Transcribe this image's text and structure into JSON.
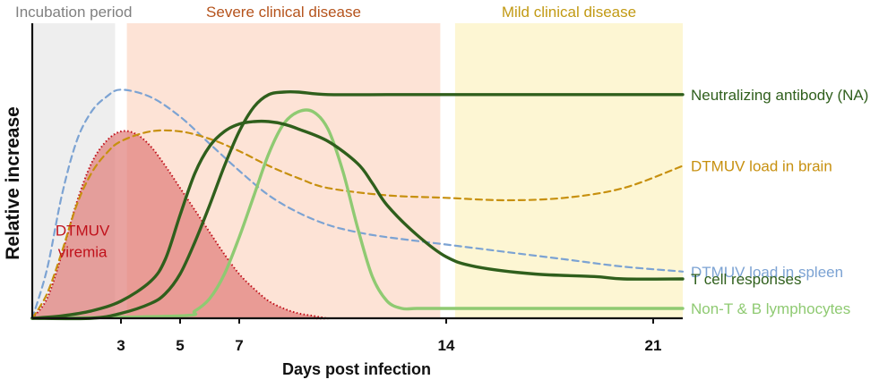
{
  "chart_data": {
    "type": "line",
    "title": "",
    "xlabel": "Days post infection",
    "ylabel": "Relative increase",
    "xlim": [
      0,
      22
    ],
    "ylim": [
      0,
      1
    ],
    "x_ticks": [
      3,
      5,
      7,
      14,
      21
    ],
    "grid": false,
    "legend": "direct labels at right end of curves",
    "phases": [
      {
        "name": "Incubation period",
        "x_range": [
          0,
          2.8
        ],
        "color": "#eeeeee",
        "label_color": "#808080"
      },
      {
        "name": "Severe clinical disease",
        "x_range": [
          3.2,
          13.8
        ],
        "color": "#fde3d6",
        "label_color": "#b5531c"
      },
      {
        "name": "Mild clinical disease",
        "x_range": [
          14.3,
          22
        ],
        "color": "#fdf6d3",
        "label_color": "#c29a14"
      }
    ],
    "series": [
      {
        "name": "DTMUV viremia",
        "label": [
          "DTMUV",
          "viremia"
        ],
        "style": "dotted-area",
        "color": "#c0111b",
        "fill": "#e07f7c",
        "label_at": [
          1.7,
          0.3
        ],
        "x": [
          0,
          0.5,
          1.0,
          1.5,
          2.0,
          2.5,
          3.0,
          3.5,
          4.0,
          4.5,
          5.0,
          5.5,
          6.0,
          6.5,
          7.0,
          7.5,
          8.0,
          8.5,
          9.0,
          9.5,
          10.0,
          10.5,
          22
        ],
        "y": [
          0,
          0.08,
          0.26,
          0.47,
          0.63,
          0.72,
          0.76,
          0.75,
          0.7,
          0.62,
          0.53,
          0.44,
          0.35,
          0.26,
          0.18,
          0.12,
          0.07,
          0.04,
          0.02,
          0.01,
          0,
          0,
          0
        ]
      },
      {
        "name": "DTMUV load in spleen",
        "style": "dashed",
        "color": "#7ca3d3",
        "x": [
          0,
          0.5,
          1.0,
          1.5,
          2.0,
          2.5,
          3.0,
          4.0,
          5.0,
          6.0,
          7.0,
          8.0,
          9.0,
          10.0,
          11.0,
          12.0,
          14.0,
          16.0,
          18.0,
          20.0,
          22
        ],
        "y": [
          0,
          0.2,
          0.5,
          0.72,
          0.84,
          0.9,
          0.93,
          0.9,
          0.82,
          0.71,
          0.6,
          0.5,
          0.43,
          0.38,
          0.35,
          0.33,
          0.3,
          0.27,
          0.24,
          0.21,
          0.19
        ]
      },
      {
        "name": "DTMUV load in brain",
        "style": "dashed",
        "color": "#c7900f",
        "x": [
          0,
          0.5,
          1.0,
          1.5,
          2.0,
          2.5,
          3.0,
          4.0,
          5.0,
          6.0,
          7.0,
          8.0,
          9.0,
          10.0,
          12.0,
          14.0,
          16.0,
          18.0,
          20.0,
          22
        ],
        "y": [
          0,
          0.1,
          0.27,
          0.46,
          0.59,
          0.67,
          0.72,
          0.76,
          0.76,
          0.73,
          0.68,
          0.62,
          0.57,
          0.53,
          0.5,
          0.49,
          0.48,
          0.49,
          0.53,
          0.62
        ]
      },
      {
        "name": "Neutralizing antibody (NA)",
        "style": "solid",
        "color": "#2f5f1c",
        "x": [
          0,
          2.0,
          3.0,
          4.0,
          4.5,
          5.0,
          5.5,
          6.0,
          6.5,
          7.0,
          7.5,
          8.0,
          8.5,
          9.0,
          10.0,
          12.0,
          14.0,
          18.0,
          22
        ],
        "y": [
          0,
          0,
          0.02,
          0.06,
          0.1,
          0.18,
          0.31,
          0.46,
          0.62,
          0.76,
          0.86,
          0.91,
          0.92,
          0.92,
          0.91,
          0.91,
          0.91,
          0.91,
          0.91
        ]
      },
      {
        "name": "T cell responses",
        "style": "solid",
        "color": "#2f5f1c",
        "x": [
          0,
          1.0,
          2.0,
          3.0,
          4.0,
          4.5,
          5.0,
          5.5,
          6.0,
          6.5,
          7.0,
          7.5,
          8.0,
          8.5,
          9.0,
          10.0,
          11.0,
          11.5,
          12.0,
          13.0,
          14.0,
          15.0,
          17.0,
          19.0,
          20.0,
          22
        ],
        "y": [
          0,
          0.01,
          0.03,
          0.07,
          0.15,
          0.24,
          0.42,
          0.59,
          0.7,
          0.76,
          0.79,
          0.8,
          0.8,
          0.79,
          0.77,
          0.72,
          0.63,
          0.55,
          0.46,
          0.34,
          0.25,
          0.21,
          0.18,
          0.17,
          0.16,
          0.16
        ]
      },
      {
        "name": "Non-T & B lymphocytes",
        "style": "solid",
        "color": "#8fca72",
        "x": [
          0,
          5.0,
          5.5,
          6.0,
          6.5,
          7.0,
          7.5,
          8.0,
          8.5,
          9.0,
          9.5,
          10.0,
          10.5,
          11.0,
          11.5,
          12.0,
          12.5,
          13.0,
          14.0,
          16.0,
          22
        ],
        "y": [
          0,
          0.01,
          0.03,
          0.08,
          0.18,
          0.33,
          0.5,
          0.67,
          0.79,
          0.84,
          0.84,
          0.77,
          0.6,
          0.37,
          0.17,
          0.07,
          0.04,
          0.04,
          0.04,
          0.04,
          0.04
        ]
      }
    ]
  }
}
